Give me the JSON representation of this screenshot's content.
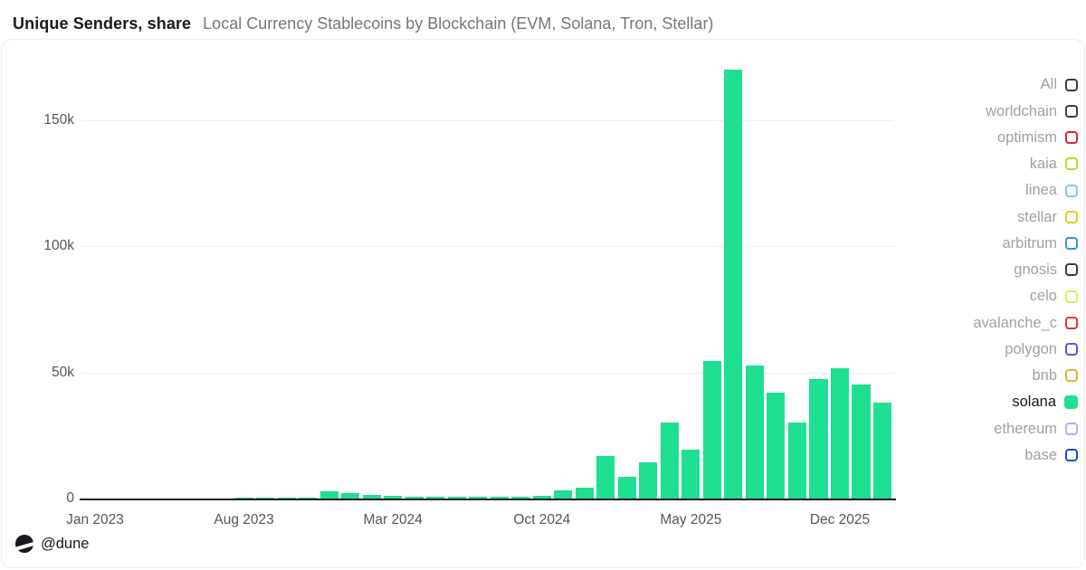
{
  "chart_data": {
    "type": "bar",
    "title": "Unique Senders, share",
    "subtitle": "Local Currency Stablecoins by Blockchain (EVM, Solana, Tron, Stellar)",
    "series_name": "solana",
    "bar_color": "#1EE090",
    "grid": "horizontal",
    "legend_position": "right",
    "ylim": [
      0,
      175000
    ],
    "categories": [
      "Jan 2023",
      "Feb 2023",
      "Mar 2023",
      "Apr 2023",
      "May 2023",
      "Jun 2023",
      "Jul 2023",
      "Aug 2023",
      "Sep 2023",
      "Oct 2023",
      "Nov 2023",
      "Dec 2023",
      "Jan 2024",
      "Feb 2024",
      "Mar 2024",
      "Apr 2024",
      "May 2024",
      "Jun 2024",
      "Jul 2024",
      "Aug 2024",
      "Sep 2024",
      "Oct 2024",
      "Nov 2024",
      "Dec 2024",
      "Jan 2025",
      "Feb 2025",
      "Mar 2025",
      "Apr 2025",
      "May 2025",
      "Jun 2025",
      "Jul 2025",
      "Aug 2025",
      "Sep 2025",
      "Oct 2025",
      "Nov 2025",
      "Dec 2025",
      "Jan 2026",
      "Feb 2026"
    ],
    "values": [
      0,
      0,
      0,
      0,
      0,
      0,
      100,
      200,
      200,
      200,
      300,
      2800,
      2200,
      1600,
      1100,
      900,
      800,
      700,
      600,
      700,
      900,
      1200,
      3200,
      4500,
      16800,
      8700,
      14500,
      30000,
      19500,
      54500,
      170000,
      52700,
      42000,
      30000,
      47500,
      51800,
      45100,
      37900
    ],
    "x_tick_labels": [
      "Jan 2023",
      "Aug 2023",
      "Mar 2024",
      "Oct 2024",
      "May 2025",
      "Dec 2025"
    ],
    "x_tick_month_indices": [
      0,
      7,
      14,
      21,
      28,
      35
    ],
    "y_ticks": [
      {
        "label": "0",
        "value": 0
      },
      {
        "label": "50k",
        "value": 50000
      },
      {
        "label": "100k",
        "value": 100000
      },
      {
        "label": "150k",
        "value": 150000
      }
    ]
  },
  "legend": {
    "items": [
      {
        "label": "All",
        "color": "#3C3C43",
        "selected": false
      },
      {
        "label": "worldchain",
        "color": "#3C3C43",
        "selected": false
      },
      {
        "label": "optimism",
        "color": "#D9244A",
        "selected": false
      },
      {
        "label": "kaia",
        "color": "#BFD626",
        "selected": false
      },
      {
        "label": "linea",
        "color": "#7BD2DF",
        "selected": false
      },
      {
        "label": "stellar",
        "color": "#DFCB22",
        "selected": false
      },
      {
        "label": "arbitrum",
        "color": "#2D9BC9",
        "selected": false
      },
      {
        "label": "gnosis",
        "color": "#3C3C43",
        "selected": false
      },
      {
        "label": "celo",
        "color": "#E3ED4E",
        "selected": false
      },
      {
        "label": "avalanche_c",
        "color": "#E23434",
        "selected": false
      },
      {
        "label": "polygon",
        "color": "#6F4BD8",
        "selected": false
      },
      {
        "label": "bnb",
        "color": "#E2AE2E",
        "selected": false
      },
      {
        "label": "solana",
        "color": "#1EE090",
        "selected": true
      },
      {
        "label": "ethereum",
        "color": "#AAB6F7",
        "selected": false
      },
      {
        "label": "base",
        "color": "#2148D1",
        "selected": false
      }
    ]
  },
  "footer": {
    "handle": "@dune"
  }
}
